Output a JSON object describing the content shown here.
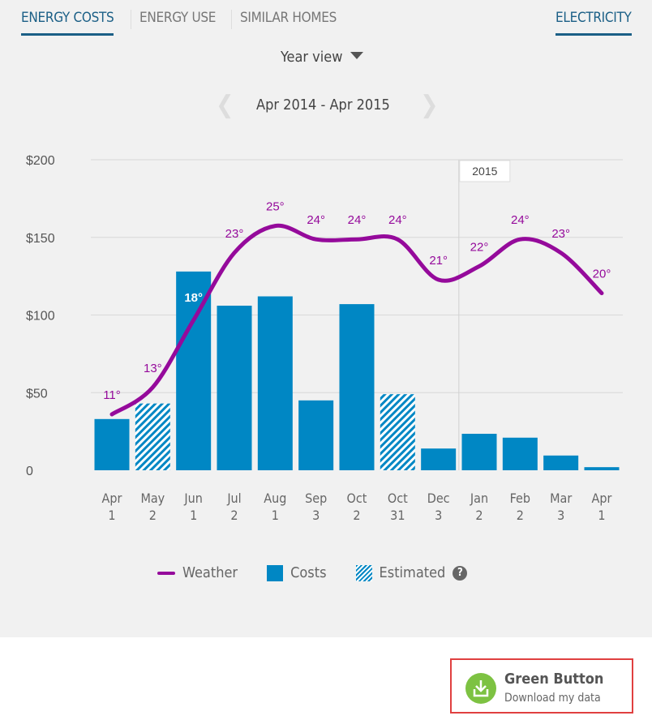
{
  "tabs": [
    {
      "label": "ENERGY COSTS",
      "active": true
    },
    {
      "label": "ENERGY USE"
    },
    {
      "label": "SIMILAR HOMES"
    }
  ],
  "fuel_tab": "ELECTRICITY",
  "view_select": "Year view",
  "date_range": "Apr 2014 - Apr 2015",
  "colors": {
    "accent": "#1b5f86",
    "bar": "#0087c4",
    "weather": "#950a9b",
    "green": "#7dc242"
  },
  "chart_data": {
    "type": "bar",
    "y_ticks": [
      "0",
      "$50",
      "$100",
      "$150",
      "$200"
    ],
    "ylim": [
      0,
      200
    ],
    "year_marker": "2015",
    "categories": [
      [
        "Apr",
        "1"
      ],
      [
        "May",
        "2"
      ],
      [
        "Jun",
        "1"
      ],
      [
        "Jul",
        "2"
      ],
      [
        "Aug",
        "1"
      ],
      [
        "Sep",
        "3"
      ],
      [
        "Oct",
        "2"
      ],
      [
        "Oct",
        "31"
      ],
      [
        "Dec",
        "3"
      ],
      [
        "Jan",
        "2"
      ],
      [
        "Feb",
        "2"
      ],
      [
        "Mar",
        "3"
      ],
      [
        "Apr",
        "1"
      ]
    ],
    "costs": [
      33,
      43,
      128,
      106,
      112,
      45,
      107,
      49,
      14,
      23.5,
      21,
      9.5,
      2
    ],
    "estimated": [
      false,
      true,
      false,
      false,
      false,
      false,
      false,
      true,
      false,
      false,
      false,
      false,
      false
    ],
    "weather": [
      11,
      13,
      18,
      23,
      25,
      24,
      24,
      24,
      21,
      22,
      24,
      23,
      20
    ],
    "weather_labels": [
      "11°",
      "13°",
      "18°",
      "23°",
      "25°",
      "24°",
      "24°",
      "24°",
      "21°",
      "22°",
      "24°",
      "23°",
      "20°"
    ]
  },
  "legend": {
    "weather": "Weather",
    "costs": "Costs",
    "estimated": "Estimated",
    "help": "?"
  },
  "green_button": {
    "title": "Green Button",
    "subtitle": "Download my data"
  }
}
